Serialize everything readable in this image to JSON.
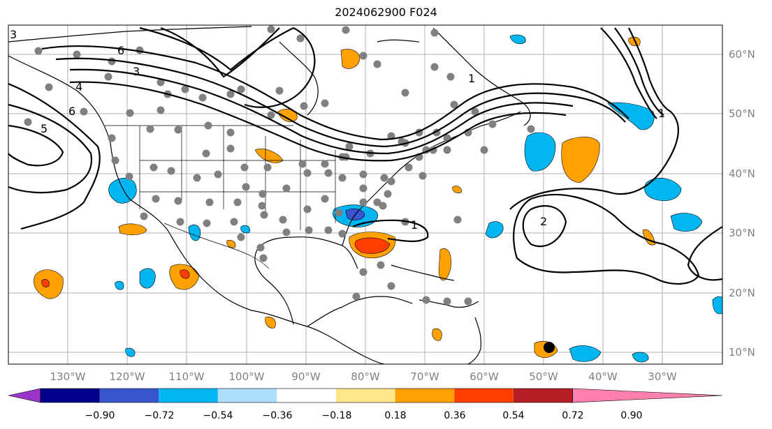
{
  "title": "2024062900 F024",
  "map": {
    "lon_labels": [
      "130°W",
      "120°W",
      "110°W",
      "100°W",
      "90°W",
      "80°W",
      "70°W",
      "60°W",
      "50°W",
      "40°W",
      "30°W"
    ],
    "lat_labels": [
      "60°N",
      "50°N",
      "40°N",
      "30°N",
      "20°N",
      "10°N"
    ],
    "contour_labels": [
      "3",
      "6",
      "4",
      "5",
      "6",
      "1",
      "2",
      "1",
      "1",
      "3"
    ]
  },
  "colorbar": {
    "ticks": [
      "−0.90",
      "−0.72",
      "−0.54",
      "−0.36",
      "−0.18",
      "0.18",
      "0.36",
      "0.54",
      "0.72",
      "0.90"
    ],
    "colors": [
      "#9a34c8",
      "#00008c",
      "#3955d0",
      "#00b6f2",
      "#aee0fb",
      "#ffffff",
      "#fde78a",
      "#ffa100",
      "#ff3e00",
      "#b41e23",
      "#ff7fae"
    ]
  }
}
